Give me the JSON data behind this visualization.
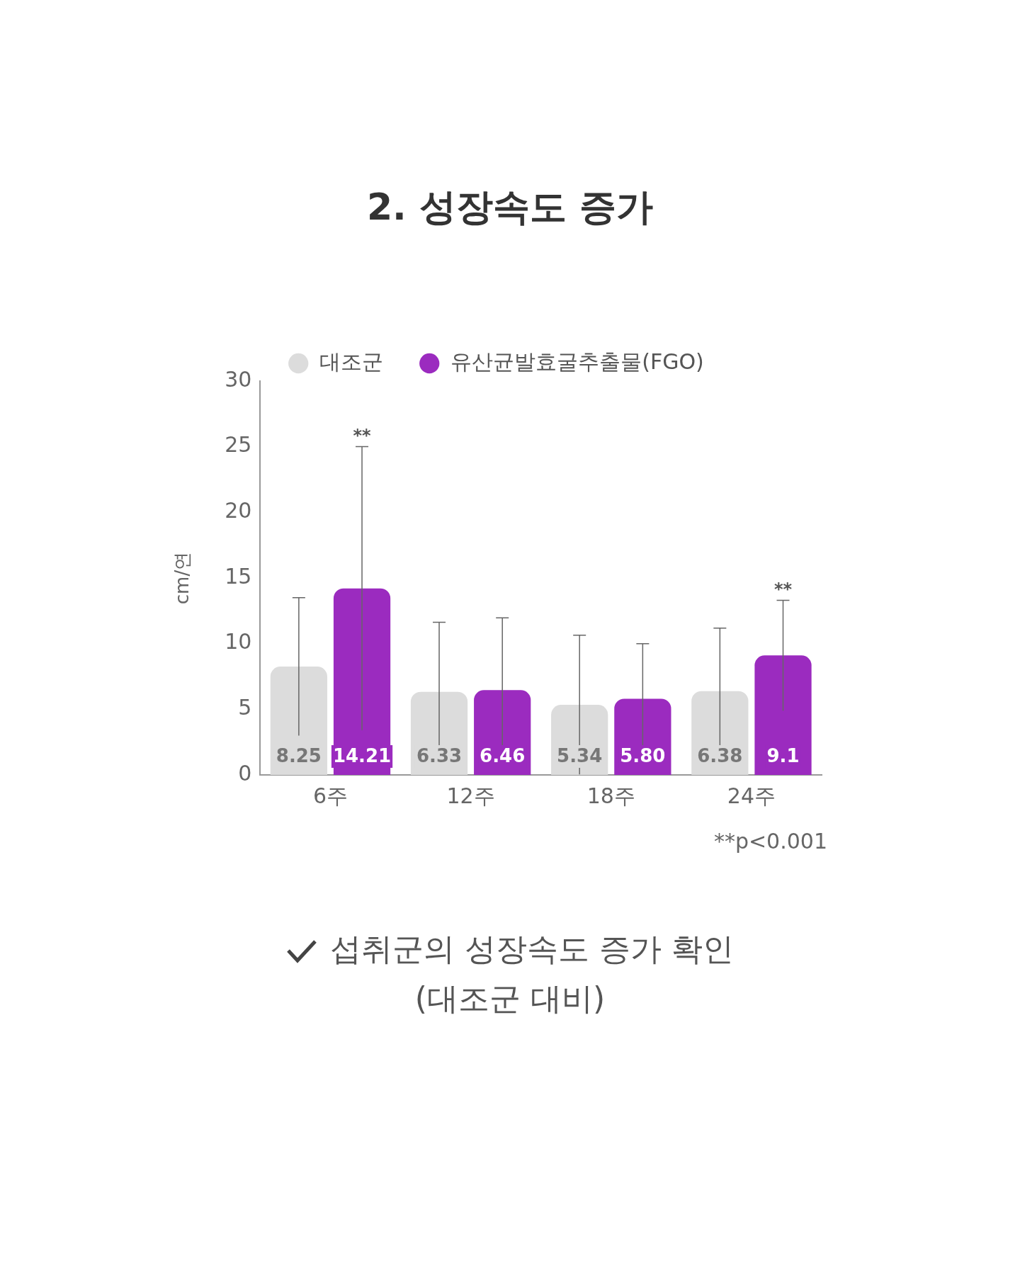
{
  "chart_data": {
    "type": "bar",
    "title": "2. 성장속도 증가",
    "categories": [
      "6주",
      "12주",
      "18주",
      "24주"
    ],
    "ylabel": "cm/연",
    "series": [
      {
        "name": "대조군",
        "color": "#dcdcdc",
        "values": [
          8.25,
          6.33,
          5.34,
          6.38
        ],
        "errors": [
          5.25,
          5.3,
          5.3,
          4.8
        ],
        "value_labels": [
          "8.25",
          "6.33",
          "5.34",
          "6.38"
        ]
      },
      {
        "name": "유산균발효굴추출물(FGO)",
        "color": "#9b2bbf",
        "values": [
          14.21,
          6.46,
          5.8,
          9.1
        ],
        "errors": [
          10.8,
          5.5,
          4.2,
          4.2
        ],
        "value_labels": [
          "14.21",
          "6.46",
          "5.80",
          "9.1"
        ]
      }
    ],
    "ylim": [
      0,
      30
    ],
    "yticks": [
      0,
      5,
      10,
      15,
      20,
      25,
      30
    ],
    "grid": false,
    "legend": "top",
    "annotations": [
      "**",
      "**",
      "**p<0.001",
      "섭취군의 성장속도 증가 확인",
      "(대조군 대비)"
    ]
  }
}
